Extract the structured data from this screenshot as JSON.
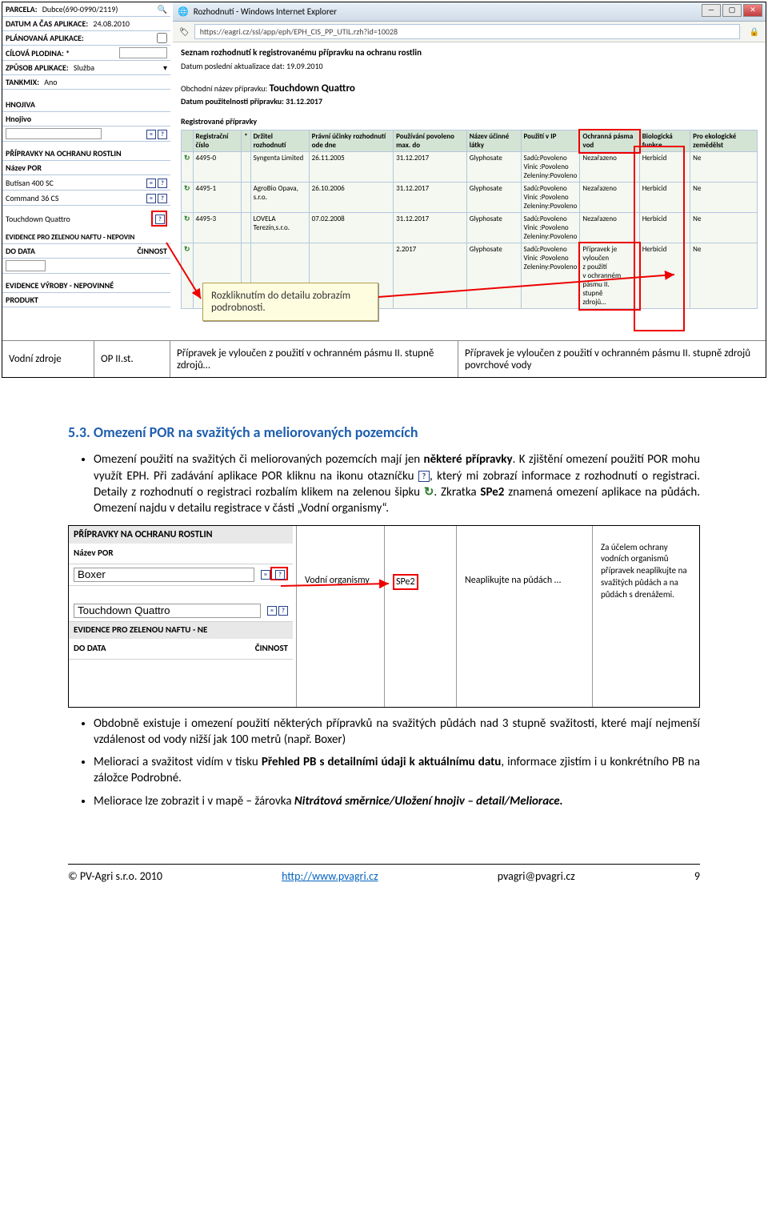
{
  "left_panel": {
    "parcela_label": "PARCELA:",
    "parcela_value": "Dubce(690-0990/2119)",
    "datum_label": "DATUM A ČAS APLIKACE:",
    "datum_value": "24.08.2010",
    "plan_label": "PLÁNOVANÁ APLIKACE:",
    "plodina_label": "CÍLOVÁ PLODINA: *",
    "zpusob_label": "ZPŮSOB APLIKACE:",
    "zpusob_value": "Služba",
    "tankmix_label": "TANKMIX:",
    "tankmix_value": "Ano",
    "hnojiva_section": "HNOJIVA",
    "hnojivo_label": "Hnojivo",
    "por_section": "PŘÍPRAVKY NA OCHRANU ROSTLIN",
    "por_name_label": "Název POR",
    "por1": "Butisan 400 SC",
    "por2": "Command 36 CS",
    "por3": "Touchdown Quattro",
    "evidence_section": "EVIDENCE PRO ZELENOU NAFTU - NEPOVIN",
    "dodata_label": "DO DATA",
    "cinnost_label": "ČINNOST",
    "vyroby_section": "EVIDENCE VÝROBY - NEPOVINNÉ",
    "produkt_label": "PRODUKT"
  },
  "ie": {
    "title": "Rozhodnutí - Windows Internet Explorer",
    "url": "https://eagri.cz/ssl/app/eph/EPH_CIS_PP_UTIL.rzh?id=10028",
    "heading": "Seznam rozhodnutí k registrovanému přípravku na ochranu rostlin",
    "update_line": "Datum poslední aktualizace dat: 19.09.2010",
    "obch_label": "Obchodní název přípravku:",
    "obch_value": "Touchdown Quattro",
    "use_label": "Datum použitelnosti přípravku: 31.12.2017",
    "reg_label": "Registrované přípravky",
    "th": [
      "",
      "Registrační číslo",
      "*",
      "Držitel rozhodnutí",
      "Právní účinky rozhodnutí ode dne",
      "Používání povoleno max. do",
      "Název účinné látky",
      "Použití v IP",
      "Ochranná pásma vod",
      "Biologická funkce",
      "Pro ekologické zemědělst"
    ],
    "rows": [
      [
        "4495-0",
        "Syngenta Limited",
        "26.11.2005",
        "31.12.2017",
        "Glyphosate",
        "Sadů:Povoleno\nVinic :Povoleno\nZeleniny:Povoleno",
        "Nezařazeno",
        "Herbicid",
        "Ne"
      ],
      [
        "4495-1",
        "AgroBio Opava, s.r.o.",
        "26.10.2006",
        "31.12.2017",
        "Glyphosate",
        "Sadů:Povoleno\nVinic :Povoleno\nZeleniny:Povoleno",
        "Nezařazeno",
        "Herbicid",
        "Ne"
      ],
      [
        "4495-3",
        "LOVELA Terezín,s.r.o.",
        "07.02.2008",
        "31.12.2017",
        "Glyphosate",
        "Sadů:Povoleno\nVinic :Povoleno\nZeleniny:Povoleno",
        "Nezařazeno",
        "Herbicid",
        "Ne"
      ],
      [
        "",
        "",
        "",
        "2.2017",
        "Glyphosate",
        "Sadů:Povoleno\nVinic :Povoleno\nZeleniny:Povoleno",
        "Přípravek je\nvyloučen\nz použití\nv ochranném\npásmu II.\nstupně\nzdrojů…",
        "Herbicid",
        "Ne"
      ]
    ]
  },
  "callout": "Rozkliknutím do detailu zobrazím podrobnosti.",
  "bottom_strip": {
    "c1": "Vodní zdroje",
    "c2": "OP II.st.",
    "c3": "Přípravek je vyloučen z použití v ochranném pásmu II. stupně zdrojů…",
    "c4": "Přípravek je vyloučen z použití v ochranném pásmu II. stupně zdrojů povrchové vody"
  },
  "section_title": "5.3. Omezení POR na svažitých a meliorovaných pozemcích",
  "bullets_top": [
    "Omezení použití na svažitých či meliorovaných pozemcích mají jen některé přípravky. K zjištění omezení použití POR mohu využít EPH. Při zadávání aplikace POR kliknu na ikonu otazníčku [?], který mi zobrazí informace z rozhodnutí o registraci. Detaily z rozhodnutí o registraci rozbalím klikem na zelenou šipku [>]. Zkratka SPe2 znamená omezení aplikace na půdách. Omezení najdu v detailu registrace v části „Vodní organismy“."
  ],
  "mid": {
    "head": "PŘÍPRAVKY NA OCHRANU ROSTLIN",
    "name_label": "Název POR",
    "por1": "Boxer",
    "por2": "Touchdown Quattro",
    "evid": "EVIDENCE PRO ZELENOU NAFTU - NE",
    "dodata": "DO DATA",
    "cinnost": "ČINNOST",
    "col1": "Vodní organismy",
    "col2": "SPe2",
    "col3": "Neaplikujte na půdách …",
    "col4": "Za účelem ochrany vodních organismů přípravek neaplikujte na svažitých půdách a na půdách s drenážemi."
  },
  "bullets_bottom": [
    "Obdobně existuje i omezení použití některých přípravků na svažitých půdách nad 3 stupně svažitosti, které mají nejmenší vzdálenost od vody nižší jak 100 metrů (např. Boxer)",
    "Melioraci a svažitost vidím v tisku Přehled PB s detailními údaji k aktuálnímu datu, informace zjistím i u konkrétního PB na záložce Podrobné.",
    "Meliorace lze zobrazit i v mapě – žárovka Nitrátová směrnice/Uložení hnojiv – detail/Meliorace."
  ],
  "footer": {
    "left": "© PV-Agri s.r.o. 2010",
    "link": "http://www.pvagri.cz",
    "email": "pvagri@pvagri.cz",
    "page": "9"
  }
}
